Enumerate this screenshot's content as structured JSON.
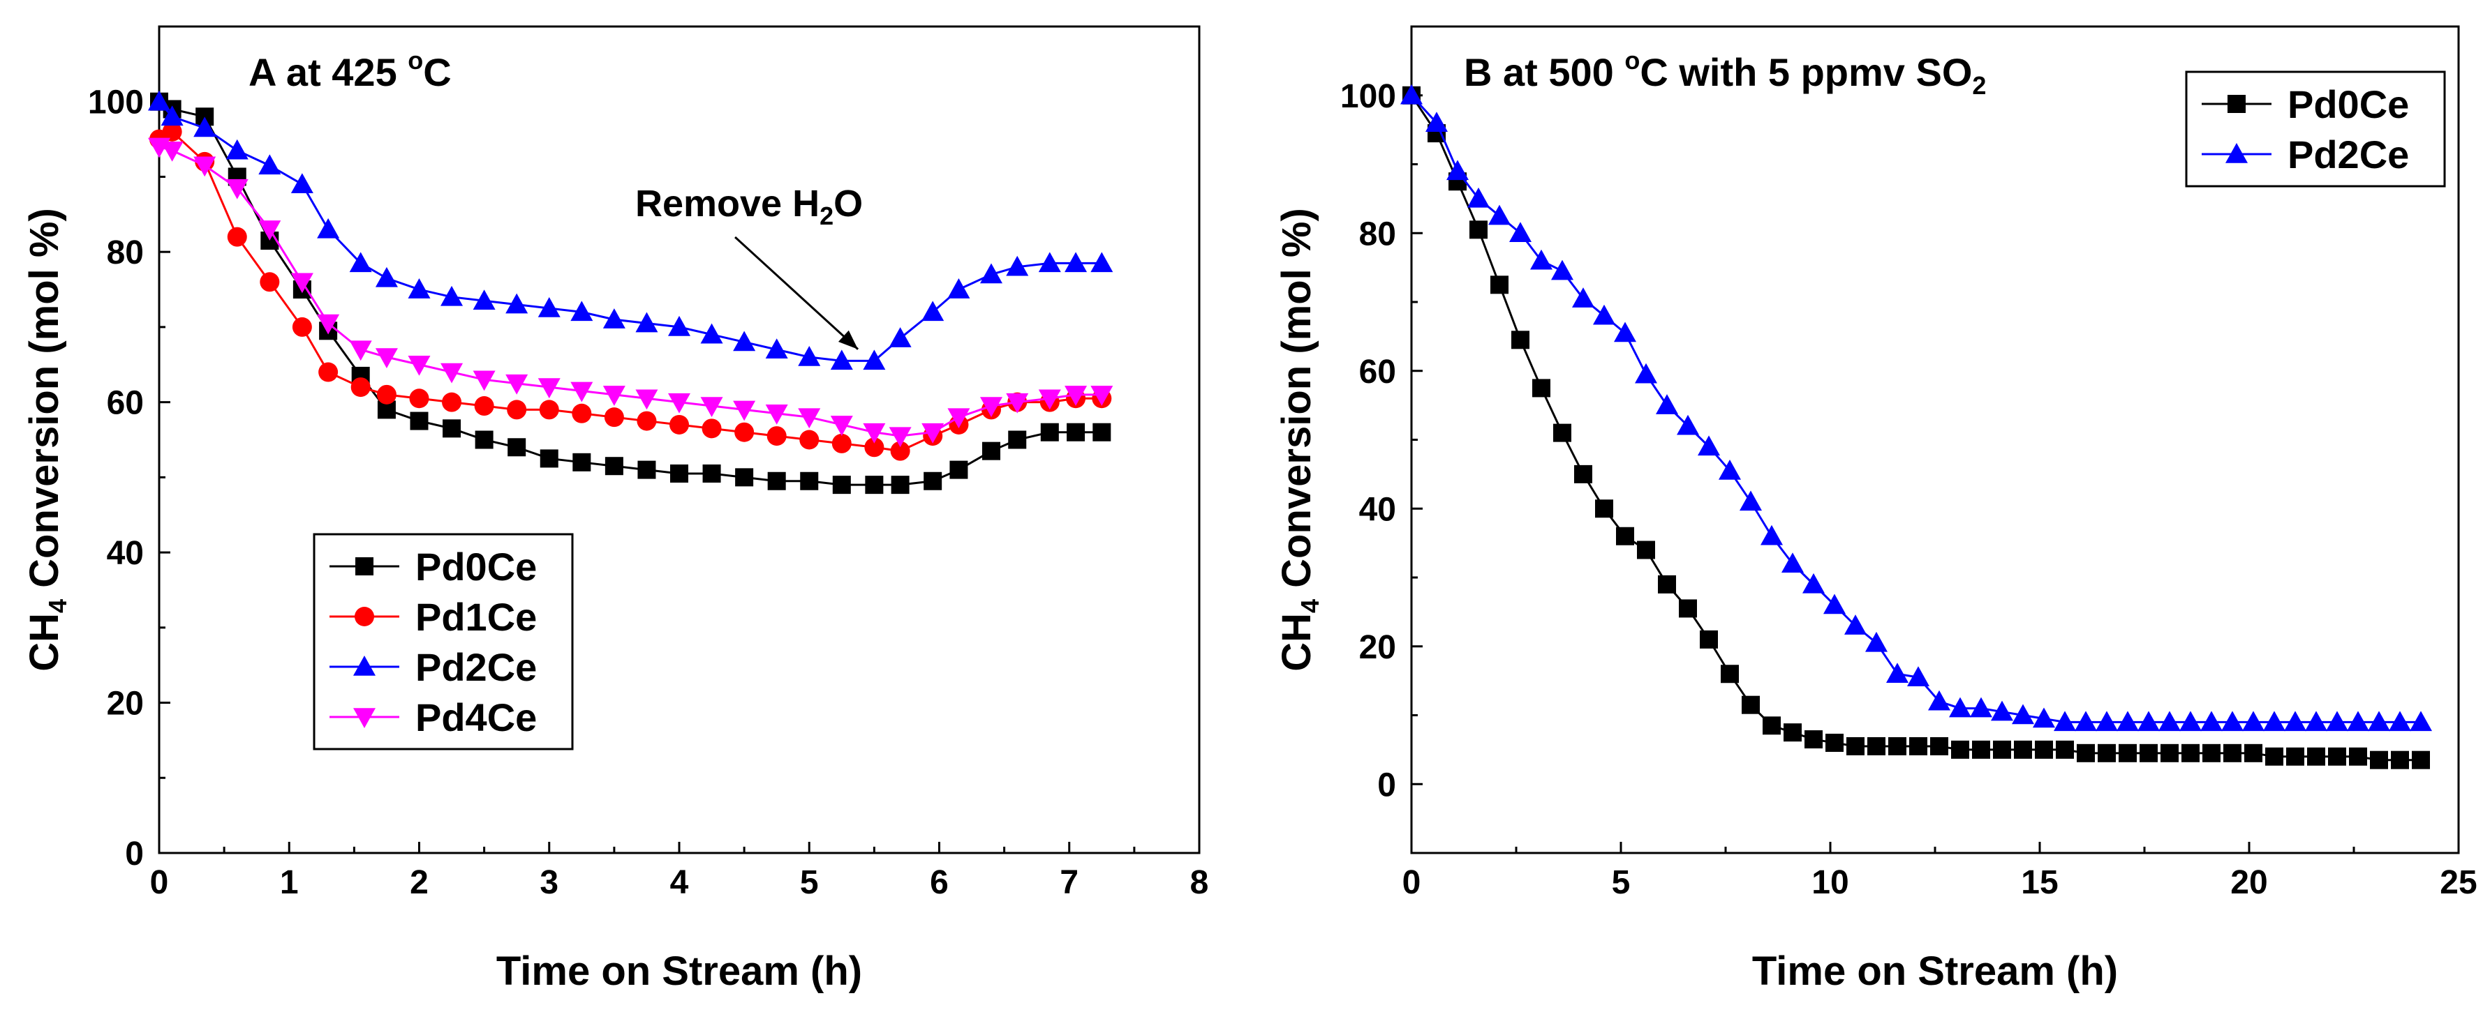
{
  "chart_data": [
    {
      "id": "A",
      "type": "line",
      "title": "A at 425 °C",
      "title_parts": {
        "main": "A at 425 ",
        "sup": "o",
        "tail": "C"
      },
      "xlabel": "Time on Stream (h)",
      "ylabel": {
        "main": "CH",
        "sub": "4",
        "tail": " Conversion (mol %)"
      },
      "xlim": [
        0,
        8
      ],
      "ylim": [
        0,
        110
      ],
      "xticks": [
        0,
        1,
        2,
        3,
        4,
        5,
        6,
        7,
        8
      ],
      "yticks": [
        0,
        20,
        40,
        60,
        80,
        100
      ],
      "legend_position": "lower-left",
      "annotation": {
        "main": "Remove H",
        "sub": "2",
        "tail": "O",
        "x": 5.45,
        "y": 65
      },
      "series": [
        {
          "name": "Pd0Ce",
          "color": "#000000",
          "marker": "square",
          "x": [
            0,
            0.1,
            0.35,
            0.6,
            0.85,
            1.1,
            1.3,
            1.55,
            1.75,
            2.0,
            2.25,
            2.5,
            2.75,
            3.0,
            3.25,
            3.5,
            3.75,
            4.0,
            4.25,
            4.5,
            4.75,
            5.0,
            5.25,
            5.5,
            5.7,
            5.95,
            6.15,
            6.4,
            6.6,
            6.85,
            7.05,
            7.25
          ],
          "y": [
            100,
            99,
            98,
            90,
            81.5,
            75,
            69.5,
            63.5,
            59,
            57.5,
            56.5,
            55,
            54,
            52.5,
            52,
            51.5,
            51,
            50.5,
            50.5,
            50,
            49.5,
            49.5,
            49,
            49,
            49,
            49.5,
            51,
            53.5,
            55,
            56,
            56,
            56
          ]
        },
        {
          "name": "Pd1Ce",
          "color": "#ff0000",
          "marker": "circle",
          "x": [
            0,
            0.1,
            0.35,
            0.6,
            0.85,
            1.1,
            1.3,
            1.55,
            1.75,
            2.0,
            2.25,
            2.5,
            2.75,
            3.0,
            3.25,
            3.5,
            3.75,
            4.0,
            4.25,
            4.5,
            4.75,
            5.0,
            5.25,
            5.5,
            5.7,
            5.95,
            6.15,
            6.4,
            6.6,
            6.85,
            7.05,
            7.25
          ],
          "y": [
            95,
            96,
            92,
            82,
            76,
            70,
            64,
            62,
            61,
            60.5,
            60,
            59.5,
            59,
            59,
            58.5,
            58,
            57.5,
            57,
            56.5,
            56,
            55.5,
            55,
            54.5,
            54,
            53.5,
            55.5,
            57,
            59,
            60,
            60,
            60.5,
            60.5
          ]
        },
        {
          "name": "Pd2Ce",
          "color": "#0000ff",
          "marker": "triangle-up",
          "x": [
            0,
            0.1,
            0.35,
            0.6,
            0.85,
            1.1,
            1.3,
            1.55,
            1.75,
            2.0,
            2.25,
            2.5,
            2.75,
            3.0,
            3.25,
            3.5,
            3.75,
            4.0,
            4.25,
            4.5,
            4.75,
            5.0,
            5.25,
            5.5,
            5.7,
            5.95,
            6.15,
            6.4,
            6.6,
            6.85,
            7.05,
            7.25
          ],
          "y": [
            100,
            98,
            96.5,
            93.5,
            91.5,
            89,
            83,
            78.5,
            76.5,
            75,
            74,
            73.5,
            73,
            72.5,
            72,
            71,
            70.5,
            70,
            69,
            68,
            67,
            66,
            65.5,
            65.5,
            68.5,
            72,
            75,
            77,
            78,
            78.5,
            78.5,
            78.5
          ]
        },
        {
          "name": "Pd4Ce",
          "color": "#ff00ff",
          "marker": "triangle-down",
          "x": [
            0,
            0.1,
            0.35,
            0.6,
            0.85,
            1.1,
            1.3,
            1.55,
            1.75,
            2.0,
            2.25,
            2.5,
            2.75,
            3.0,
            3.25,
            3.5,
            3.75,
            4.0,
            4.25,
            4.5,
            4.75,
            5.0,
            5.25,
            5.5,
            5.7,
            5.95,
            6.15,
            6.4,
            6.6,
            6.85,
            7.05,
            7.25
          ],
          "y": [
            94,
            93.5,
            91.5,
            88.5,
            83,
            76,
            70.5,
            67,
            66,
            65,
            64,
            63,
            62.5,
            62,
            61.5,
            61,
            60.5,
            60,
            59.5,
            59,
            58.5,
            58,
            57,
            56,
            55.5,
            56,
            58,
            59.5,
            60,
            60.5,
            61,
            61
          ]
        }
      ]
    },
    {
      "id": "B",
      "type": "line",
      "title": "B at 500 °C with 5 ppmv SO2",
      "title_parts": {
        "main": "B at 500 ",
        "sup": "o",
        "tail": "C with 5 ppmv SO",
        "sub": "2"
      },
      "xlabel": "Time on Stream (h)",
      "ylabel": {
        "main": "CH",
        "sub": "4",
        "tail": " Conversion (mol %)"
      },
      "xlim": [
        0,
        25
      ],
      "ylim": [
        -10,
        110
      ],
      "xticks": [
        0,
        5,
        10,
        15,
        20,
        25
      ],
      "yticks": [
        0,
        20,
        40,
        60,
        80,
        100
      ],
      "legend_position": "top-right",
      "series": [
        {
          "name": "Pd0Ce",
          "color": "#000000",
          "marker": "square",
          "x": [
            0,
            0.6,
            1.1,
            1.6,
            2.1,
            2.6,
            3.1,
            3.6,
            4.1,
            4.6,
            5.1,
            5.6,
            6.1,
            6.6,
            7.1,
            7.6,
            8.1,
            8.6,
            9.1,
            9.6,
            10.1,
            10.6,
            11.1,
            11.6,
            12.1,
            12.6,
            13.1,
            13.6,
            14.1,
            14.6,
            15.1,
            15.6,
            16.1,
            16.6,
            17.1,
            17.6,
            18.1,
            18.6,
            19.1,
            19.6,
            20.1,
            20.6,
            21.1,
            21.6,
            22.1,
            22.6,
            23.1,
            23.6,
            24.1
          ],
          "y": [
            100,
            94.5,
            87.5,
            80.5,
            72.5,
            64.5,
            57.5,
            51,
            45,
            40,
            36,
            34,
            29,
            25.5,
            21,
            16,
            11.5,
            8.5,
            7.5,
            6.5,
            6,
            5.5,
            5.5,
            5.5,
            5.5,
            5.5,
            5,
            5,
            5,
            5,
            5,
            5,
            4.5,
            4.5,
            4.5,
            4.5,
            4.5,
            4.5,
            4.5,
            4.5,
            4.5,
            4,
            4,
            4,
            4,
            4,
            3.5,
            3.5,
            3.5
          ]
        },
        {
          "name": "Pd2Ce",
          "color": "#0000ff",
          "marker": "triangle-up",
          "x": [
            0,
            0.6,
            1.1,
            1.6,
            2.1,
            2.6,
            3.1,
            3.6,
            4.1,
            4.6,
            5.1,
            5.6,
            6.1,
            6.6,
            7.1,
            7.6,
            8.1,
            8.6,
            9.1,
            9.6,
            10.1,
            10.6,
            11.1,
            11.6,
            12.1,
            12.6,
            13.1,
            13.6,
            14.1,
            14.6,
            15.1,
            15.6,
            16.1,
            16.6,
            17.1,
            17.6,
            18.1,
            18.6,
            19.1,
            19.6,
            20.1,
            20.6,
            21.1,
            21.6,
            22.1,
            22.6,
            23.1,
            23.6,
            24.1
          ],
          "y": [
            100,
            96,
            89,
            85,
            82.5,
            80,
            76,
            74.5,
            70.5,
            68,
            65.5,
            59.5,
            55,
            52,
            49,
            45.5,
            41,
            36,
            32,
            29,
            26,
            23,
            20.5,
            16,
            15.5,
            12,
            11,
            11,
            10.5,
            10,
            9.5,
            9,
            9,
            9,
            9,
            9,
            9,
            9,
            9,
            9,
            9,
            9,
            9,
            9,
            9,
            9,
            9,
            9,
            9
          ]
        }
      ]
    }
  ]
}
